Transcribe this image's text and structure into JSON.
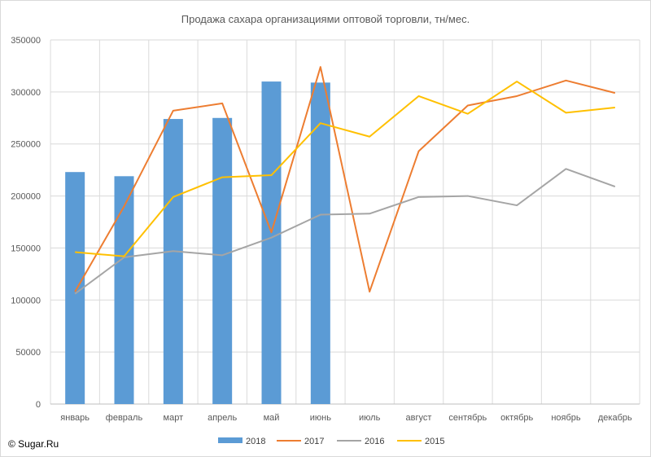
{
  "chart_data": {
    "type": "bar+line",
    "title": "Продажа сахара организациями оптовой торговли, тн/мес.",
    "categories": [
      "январь",
      "февраль",
      "март",
      "апрель",
      "май",
      "июнь",
      "июль",
      "август",
      "сентябрь",
      "октябрь",
      "ноябрь",
      "декабрь"
    ],
    "ylim": [
      0,
      350000
    ],
    "yticks": [
      0,
      50000,
      100000,
      150000,
      200000,
      250000,
      300000,
      350000
    ],
    "ytick_labels": [
      "0",
      "50000",
      "100000",
      "150000",
      "200000",
      "250000",
      "300000",
      "350000"
    ],
    "grid": true,
    "legend_position": "bottom",
    "series": [
      {
        "name": "2018",
        "type": "bar",
        "color": "#5b9bd5",
        "values": [
          223000,
          219000,
          274000,
          275000,
          310000,
          309000,
          null,
          null,
          null,
          null,
          null,
          null
        ]
      },
      {
        "name": "2017",
        "type": "line",
        "color": "#ed7d31",
        "values": [
          108000,
          190000,
          282000,
          289000,
          165000,
          324000,
          108000,
          243000,
          287000,
          296000,
          311000,
          299000
        ]
      },
      {
        "name": "2016",
        "type": "line",
        "color": "#a5a5a5",
        "values": [
          106000,
          141000,
          147000,
          143000,
          160000,
          182000,
          183000,
          199000,
          200000,
          191000,
          226000,
          209000
        ]
      },
      {
        "name": "2015",
        "type": "line",
        "color": "#ffc000",
        "values": [
          146000,
          142000,
          199000,
          218000,
          220000,
          270000,
          257000,
          296000,
          279000,
          310000,
          280000,
          285000
        ]
      }
    ]
  },
  "footer": {
    "copyright": "© Sugar.Ru"
  }
}
